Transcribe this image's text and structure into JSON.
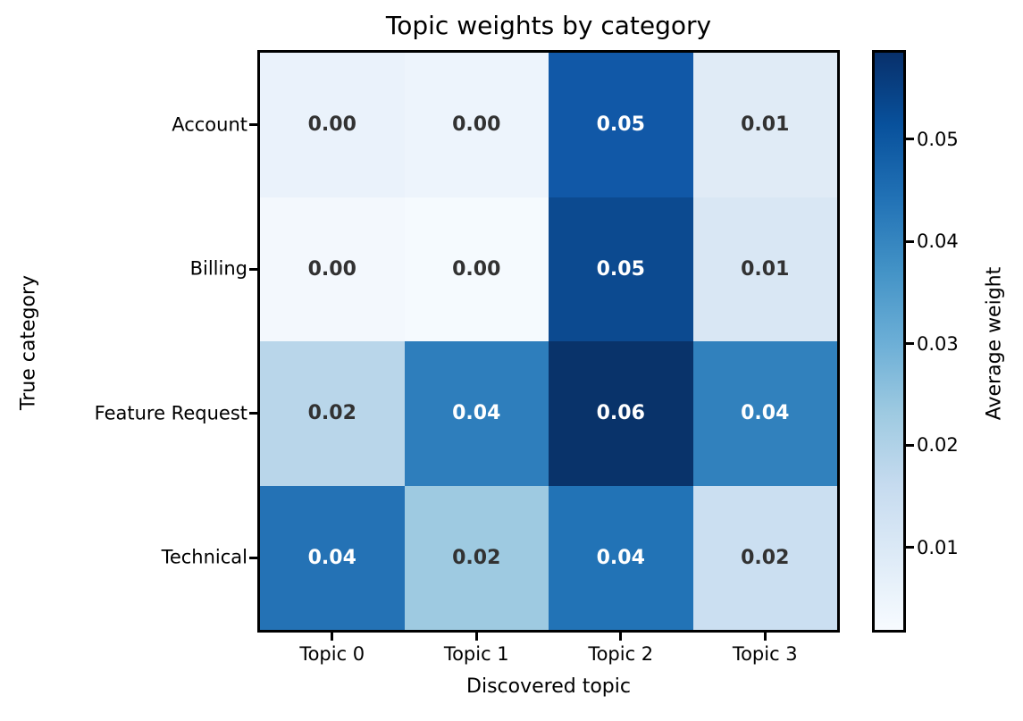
{
  "chart_data": {
    "type": "heatmap",
    "title": "Topic weights by category",
    "xlabel": "Discovered topic",
    "ylabel": "True category",
    "x_categories": [
      "Topic 0",
      "Topic 1",
      "Topic 2",
      "Topic 3"
    ],
    "y_categories": [
      "Account",
      "Billing",
      "Feature Request",
      "Technical"
    ],
    "values": [
      [
        0.0,
        0.0,
        0.05,
        0.01
      ],
      [
        0.0,
        0.0,
        0.05,
        0.01
      ],
      [
        0.02,
        0.04,
        0.06,
        0.04
      ],
      [
        0.04,
        0.02,
        0.04,
        0.02
      ]
    ],
    "value_labels": [
      [
        "0.00",
        "0.00",
        "0.05",
        "0.01"
      ],
      [
        "0.00",
        "0.00",
        "0.05",
        "0.01"
      ],
      [
        "0.02",
        "0.04",
        "0.06",
        "0.04"
      ],
      [
        "0.04",
        "0.02",
        "0.04",
        "0.02"
      ]
    ],
    "cell_colors": [
      [
        "#eaf2fb",
        "#edf4fc",
        "#1158a7",
        "#e0ebf6"
      ],
      [
        "#f3f8fd",
        "#f5fafe",
        "#0c4a90",
        "#d9e7f4"
      ],
      [
        "#b9d6ea",
        "#2e7ebc",
        "#09336a",
        "#3181bd"
      ],
      [
        "#2472b5",
        "#9ecae1",
        "#2273b6",
        "#cbdff1"
      ]
    ],
    "annot_dark_color": "#323232",
    "annot_light_color": "#ffffff",
    "colormap": "Blues",
    "grid": false,
    "colorbar": {
      "label": "Average weight",
      "tick_labels": [
        "0.05",
        "0.04",
        "0.03",
        "0.02",
        "0.01"
      ],
      "tick_fractions_from_top": [
        0.15,
        0.327,
        0.504,
        0.68,
        0.857
      ],
      "gradient_stops": [
        "#08306b",
        "#08519c",
        "#2171b5",
        "#4292c6",
        "#6baed6",
        "#9ecae1",
        "#c6dbef",
        "#deebf7",
        "#f7fbff"
      ]
    }
  }
}
